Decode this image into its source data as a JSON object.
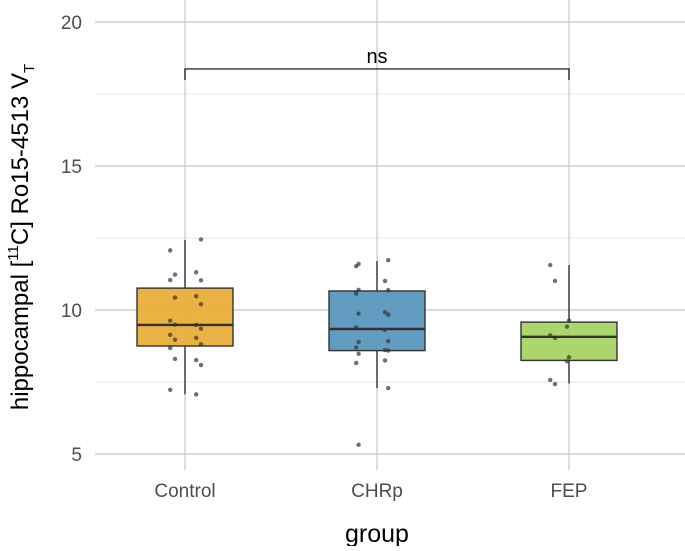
{
  "chart_data": {
    "type": "box",
    "title": "",
    "xlabel": "group",
    "ylabel": {
      "prefix": "hippocampal [",
      "sup": "11",
      "middle": "C] Ro15-4513 V",
      "sub": "T"
    },
    "ylim": [
      5,
      20.5
    ],
    "yticks": [
      5,
      10,
      15,
      20
    ],
    "yticks_labels": [
      "5",
      "10",
      "15",
      "20"
    ],
    "grid": true,
    "categories": [
      "Control",
      "CHRp",
      "FEP"
    ],
    "colors": [
      "#E9AE38",
      "#5A97BD",
      "#A6D466"
    ],
    "boxes": [
      {
        "category": "Control",
        "whisker_low": 7.07,
        "q1": 8.75,
        "median": 9.48,
        "q3": 10.76,
        "whisker_high": 12.43,
        "points": [
          12.45,
          12.07,
          11.31,
          11.23,
          11.03,
          11.04,
          10.48,
          10.43,
          10.2,
          9.63,
          9.48,
          9.49,
          9.35,
          9.14,
          9.03,
          8.97,
          8.81,
          8.68,
          8.26,
          8.3,
          8.09,
          7.23,
          7.07
        ]
      },
      {
        "category": "CHRp",
        "whisker_low": 7.29,
        "q1": 8.59,
        "median": 9.34,
        "q3": 10.66,
        "whisker_high": 11.7,
        "points": [
          11.73,
          11.6,
          11.52,
          11.01,
          10.69,
          10.7,
          10.57,
          9.92,
          9.84,
          9.87,
          9.39,
          9.31,
          8.92,
          8.89,
          8.7,
          8.61,
          8.59,
          8.48,
          8.16,
          8.25,
          7.29,
          5.32
        ]
      },
      {
        "category": "FEP",
        "whisker_low": 7.45,
        "q1": 8.25,
        "median": 9.07,
        "q3": 9.58,
        "whisker_high": 11.56,
        "points": [
          11.56,
          11.01,
          9.63,
          9.42,
          9.12,
          9.03,
          8.36,
          8.22,
          7.57,
          7.43
        ]
      }
    ],
    "annotation": {
      "label": "ns",
      "from": "Control",
      "to": "FEP",
      "y": 18.37
    }
  }
}
